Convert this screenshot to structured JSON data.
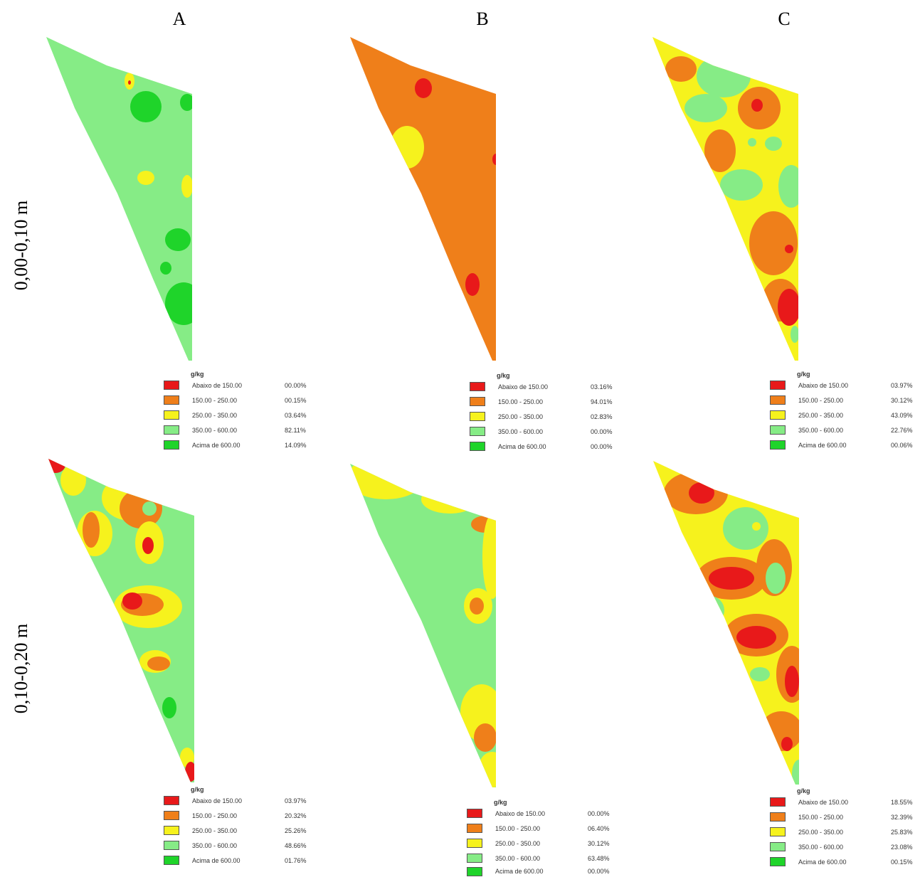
{
  "columns": [
    "A",
    "B",
    "C"
  ],
  "rows": [
    "0,00-0,10 m",
    "0,10-0,20 m"
  ],
  "legend": {
    "unit": "g/kg",
    "classes": [
      {
        "label": "Abaixo de 150.00",
        "color": "#e8191a"
      },
      {
        "label": "150.00 - 250.00",
        "color": "#ef7f1a"
      },
      {
        "label": "250.00 - 350.00",
        "color": "#f6f21d"
      },
      {
        "label": "350.00 - 600.00",
        "color": "#86ec86"
      },
      {
        "label": "Acima de 600.00",
        "color": "#1fd42a"
      }
    ]
  },
  "panels": [
    {
      "id": "A-top",
      "percents": [
        "00.00%",
        "00.15%",
        "03.64%",
        "82.11%",
        "14.09%"
      ]
    },
    {
      "id": "B-top",
      "percents": [
        "03.16%",
        "94.01%",
        "02.83%",
        "00.00%",
        "00.00%"
      ]
    },
    {
      "id": "C-top",
      "percents": [
        "03.97%",
        "30.12%",
        "43.09%",
        "22.76%",
        "00.06%"
      ]
    },
    {
      "id": "A-bottom",
      "percents": [
        "03.97%",
        "20.32%",
        "25.26%",
        "48.66%",
        "01.76%"
      ]
    },
    {
      "id": "B-bottom",
      "percents": [
        "00.00%",
        "06.40%",
        "30.12%",
        "63.48%",
        "00.00%"
      ]
    },
    {
      "id": "C-bottom",
      "percents": [
        "18.55%",
        "32.39%",
        "25.83%",
        "23.08%",
        "00.15%"
      ]
    }
  ]
}
